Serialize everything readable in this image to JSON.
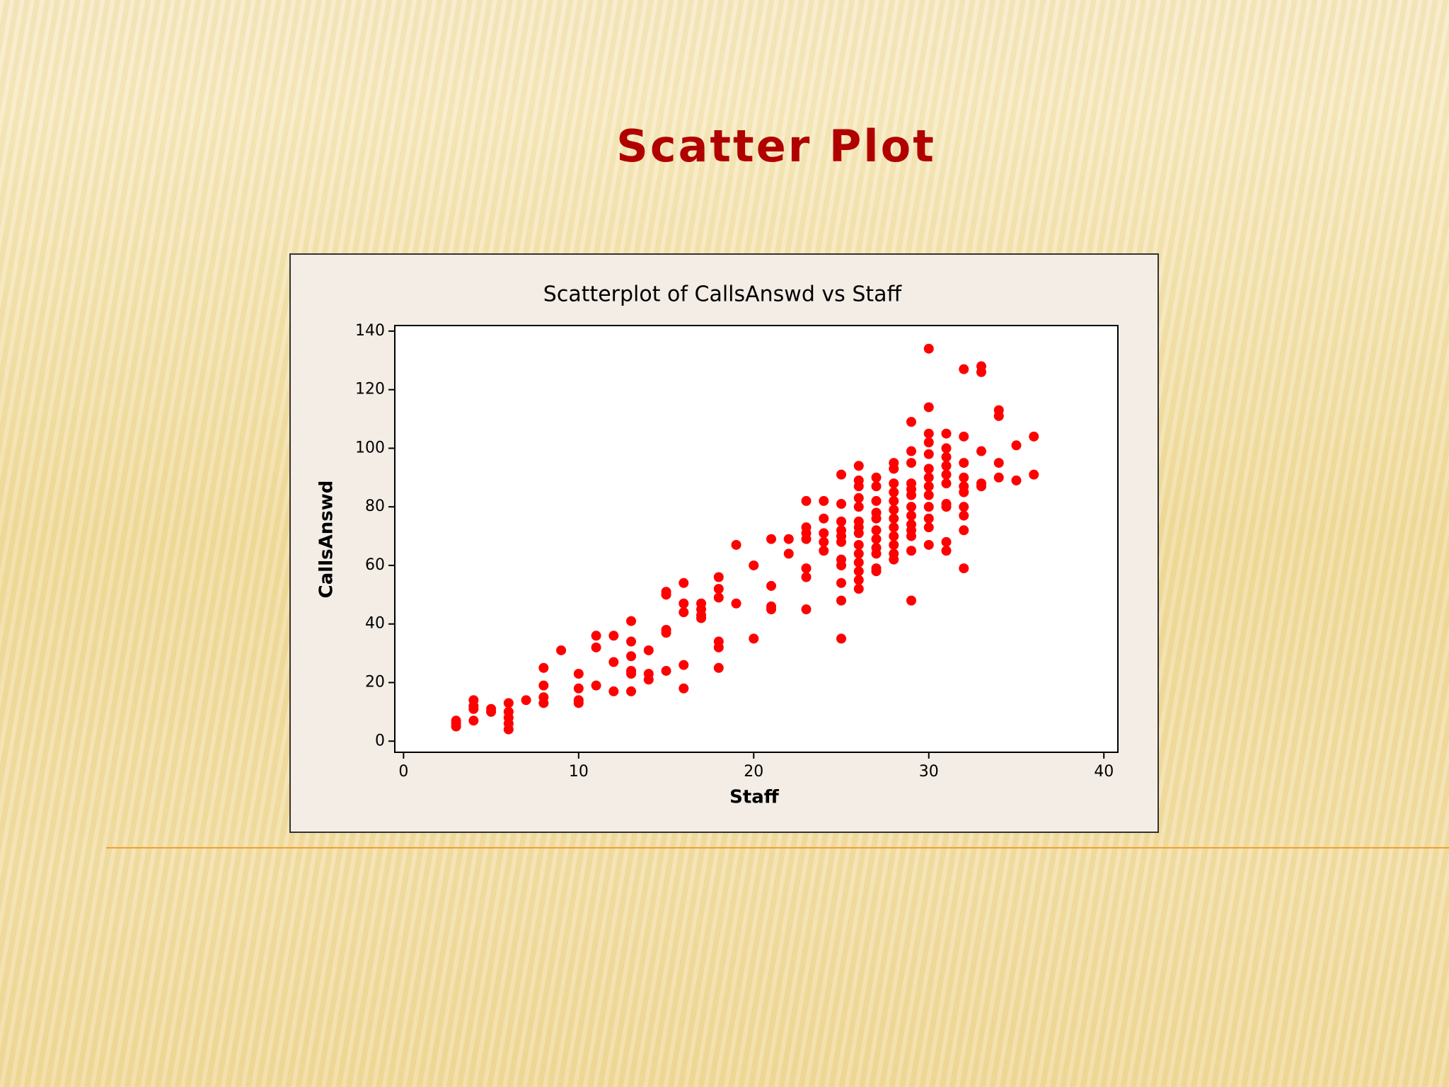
{
  "slide": {
    "title": "Scatter Plot"
  },
  "chart_data": {
    "type": "scatter",
    "title": "Scatterplot of CallsAnswd vs Staff",
    "xlabel": "Staff",
    "ylabel": "CallsAnswd",
    "color": "#ff0000",
    "xlim": [
      -0.5,
      40.8
    ],
    "ylim": [
      -3.8,
      141.9
    ],
    "xticks": [
      0,
      10,
      20,
      30,
      40
    ],
    "yticks": [
      0,
      20,
      40,
      60,
      80,
      100,
      120,
      140
    ],
    "x": [
      3,
      3,
      3,
      4,
      4,
      4,
      4,
      5,
      5,
      6,
      6,
      6,
      6,
      6,
      7,
      8,
      8,
      8,
      8,
      9,
      10,
      10,
      10,
      10,
      11,
      11,
      11,
      12,
      12,
      12,
      13,
      13,
      13,
      13,
      13,
      13,
      14,
      14,
      14,
      15,
      15,
      15,
      15,
      15,
      16,
      16,
      16,
      16,
      16,
      17,
      17,
      17,
      17,
      18,
      18,
      18,
      18,
      18,
      18,
      19,
      19,
      20,
      20,
      21,
      21,
      21,
      21,
      22,
      22,
      23,
      23,
      23,
      23,
      23,
      23,
      23,
      24,
      24,
      24,
      24,
      24,
      25,
      25,
      25,
      25,
      25,
      25,
      25,
      25,
      25,
      25,
      25,
      26,
      26,
      26,
      26,
      26,
      26,
      26,
      26,
      26,
      26,
      26,
      26,
      26,
      26,
      27,
      27,
      27,
      27,
      27,
      27,
      27,
      27,
      27,
      27,
      27,
      28,
      28,
      28,
      28,
      28,
      28,
      28,
      28,
      28,
      28,
      28,
      28,
      29,
      29,
      29,
      29,
      29,
      29,
      29,
      29,
      29,
      29,
      29,
      29,
      29,
      30,
      30,
      30,
      30,
      30,
      30,
      30,
      30,
      30,
      30,
      30,
      30,
      30,
      31,
      31,
      31,
      31,
      31,
      31,
      31,
      31,
      31,
      31,
      32,
      32,
      32,
      32,
      32,
      32,
      32,
      32,
      32,
      32,
      33,
      33,
      33,
      33,
      33,
      34,
      34,
      34,
      34,
      35,
      35,
      36,
      36
    ],
    "values": [
      7,
      6,
      5,
      14,
      12,
      11,
      7,
      11,
      10,
      13,
      10,
      8,
      6,
      4,
      14,
      25,
      19,
      15,
      13,
      31,
      23,
      18,
      14,
      13,
      36,
      32,
      19,
      36,
      27,
      17,
      41,
      34,
      29,
      24,
      23,
      17,
      31,
      23,
      21,
      51,
      50,
      38,
      37,
      24,
      54,
      47,
      44,
      26,
      18,
      47,
      45,
      43,
      42,
      56,
      52,
      49,
      34,
      32,
      25,
      67,
      47,
      60,
      35,
      69,
      53,
      46,
      45,
      69,
      64,
      82,
      73,
      71,
      69,
      59,
      56,
      45,
      82,
      76,
      71,
      68,
      65,
      91,
      81,
      75,
      72,
      70,
      68,
      62,
      60,
      54,
      48,
      35,
      94,
      89,
      87,
      83,
      80,
      75,
      73,
      71,
      67,
      64,
      61,
      58,
      55,
      52,
      90,
      87,
      82,
      78,
      76,
      72,
      69,
      66,
      64,
      59,
      58,
      95,
      93,
      88,
      85,
      82,
      79,
      76,
      73,
      70,
      67,
      64,
      62,
      109,
      99,
      95,
      88,
      86,
      84,
      80,
      77,
      74,
      72,
      70,
      65,
      48,
      134,
      114,
      105,
      102,
      98,
      93,
      90,
      87,
      84,
      80,
      76,
      73,
      67,
      105,
      100,
      97,
      94,
      91,
      88,
      81,
      80,
      68,
      65,
      127,
      104,
      95,
      90,
      87,
      85,
      80,
      77,
      72,
      59,
      128,
      126,
      99,
      88,
      87,
      113,
      111,
      95,
      90,
      101,
      89,
      104,
      91
    ]
  }
}
